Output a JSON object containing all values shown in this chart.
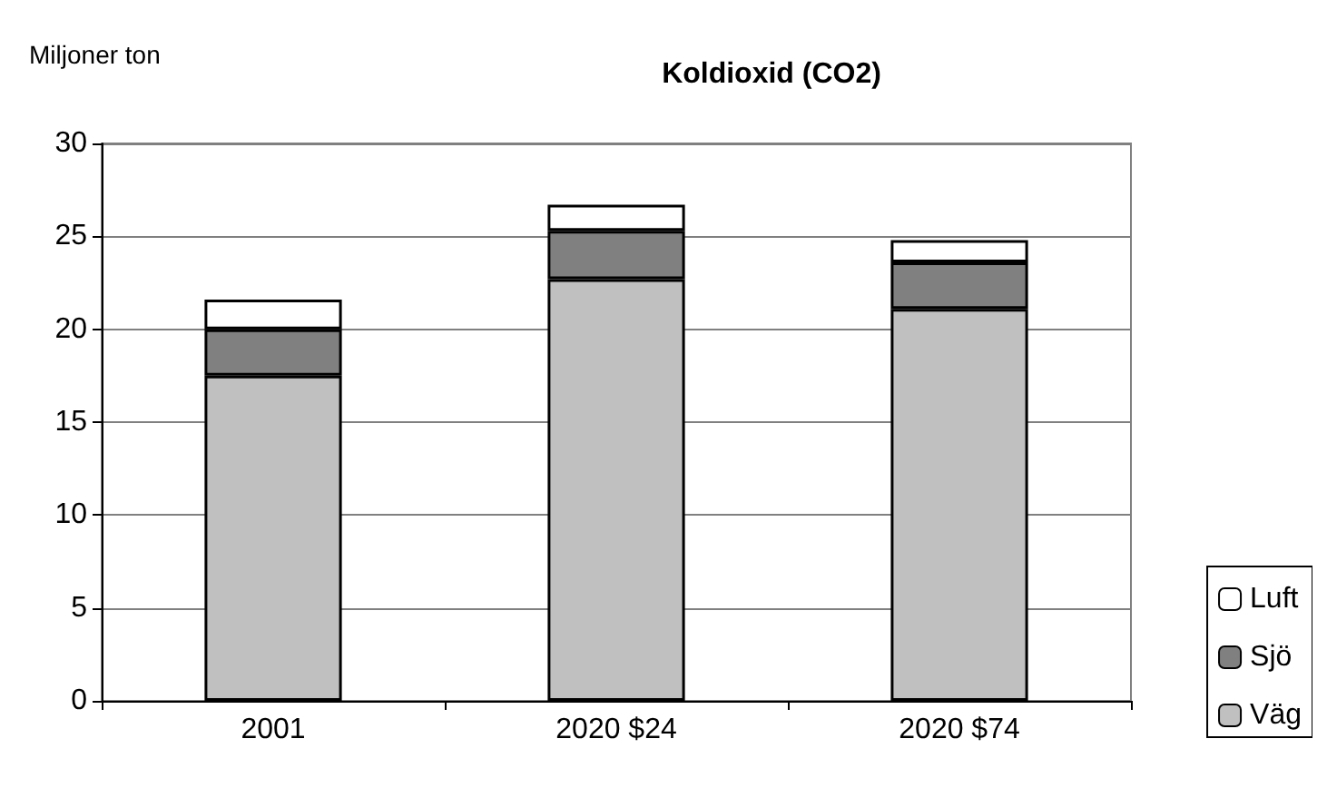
{
  "chart_data": {
    "type": "bar",
    "title": "Koldioxid (CO2)",
    "ylabel": "Miljoner ton",
    "categories": [
      "2001",
      "2020 $24",
      "2020 $74"
    ],
    "stacked": true,
    "series": [
      {
        "name": "Väg",
        "color": "#c0c0c0",
        "values": [
          17.5,
          22.7,
          21.1
        ]
      },
      {
        "name": "Sjö",
        "color": "#808080",
        "values": [
          2.5,
          2.6,
          2.5
        ]
      },
      {
        "name": "Luft",
        "color": "#ffffff",
        "values": [
          1.6,
          1.4,
          1.2
        ]
      }
    ],
    "ylim": [
      0,
      30
    ],
    "yticks": [
      0,
      5,
      10,
      15,
      20,
      25,
      30
    ],
    "grid": "y",
    "legend": "right"
  }
}
